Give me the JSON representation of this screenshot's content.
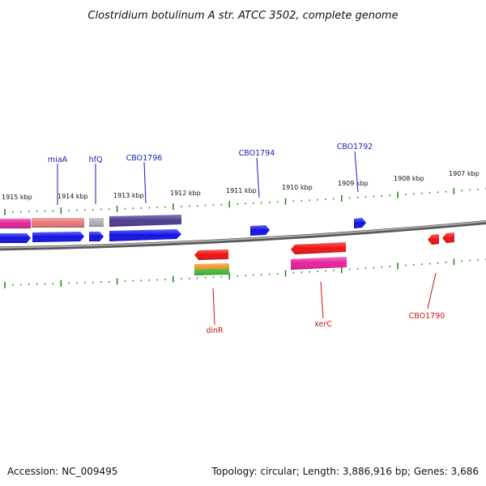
{
  "title": "Clostridium botulinum A str. ATCC 3502, complete genome",
  "footer": {
    "accession": "Accession: NC_009495",
    "summary": "Topology: circular; Length: 3,886,916 bp; Genes: 3,686"
  },
  "scale_labels": [
    "1915 kbp",
    "1914 kbp",
    "1913 kbp",
    "1912 kbp",
    "1911 kbp",
    "1910 kbp",
    "1909 kbp",
    "1908 kbp",
    "1907 kbp"
  ],
  "gene_labels": {
    "forward": [
      "miaA",
      "hfQ",
      "CBO1796",
      "CBO1794",
      "CBO1792"
    ],
    "reverse": [
      "dinR",
      "xerC",
      "CBO1790"
    ]
  },
  "colors": {
    "forward_label": "#1a1ab8",
    "reverse_label": "#cc1111",
    "backbone": "#808080",
    "tick": "#2e8b22",
    "gene_blue": "#1010e8",
    "gene_red": "#ee1010",
    "gene_pink": "#e8209a",
    "gene_salmon": "#e87878",
    "gene_gray": "#b0b0b0",
    "gene_navy": "#4a3c8c",
    "gene_orange": "#f08c14",
    "gene_green": "#40c040"
  }
}
